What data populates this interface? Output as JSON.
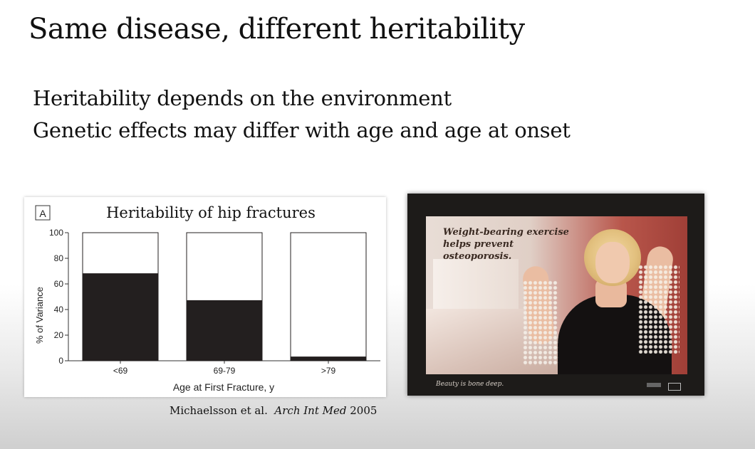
{
  "slide": {
    "title": "Same disease, different heritability",
    "bullets": [
      "Heritability depends on the environment",
      "Genetic effects may differ with age and age at onset"
    ]
  },
  "figure": {
    "panel_label": "A",
    "citation": {
      "authors": "Michaelsson et al.",
      "journal": "Arch Int Med",
      "year": "2005"
    }
  },
  "chart_data": {
    "type": "bar",
    "title": "Heritability of hip fractures",
    "xlabel": "Age at First Fracture, y",
    "ylabel": "% of Variance",
    "categories": [
      "<69",
      "69-79",
      ">79"
    ],
    "series": [
      {
        "values": [
          68,
          47,
          3
        ],
        "color": "#231f1f"
      },
      {
        "values": [
          32,
          53,
          97
        ],
        "color": "#ffffff"
      }
    ],
    "stacked": true,
    "ylim": [
      0,
      100
    ],
    "yticks": [
      0,
      20,
      40,
      60,
      80,
      100
    ],
    "grid": false,
    "legend": "none"
  },
  "poster": {
    "headline_line1": "Weight-bearing exercise",
    "headline_line2": "helps prevent osteoporosis.",
    "tagline": "Beauty is bone deep."
  }
}
